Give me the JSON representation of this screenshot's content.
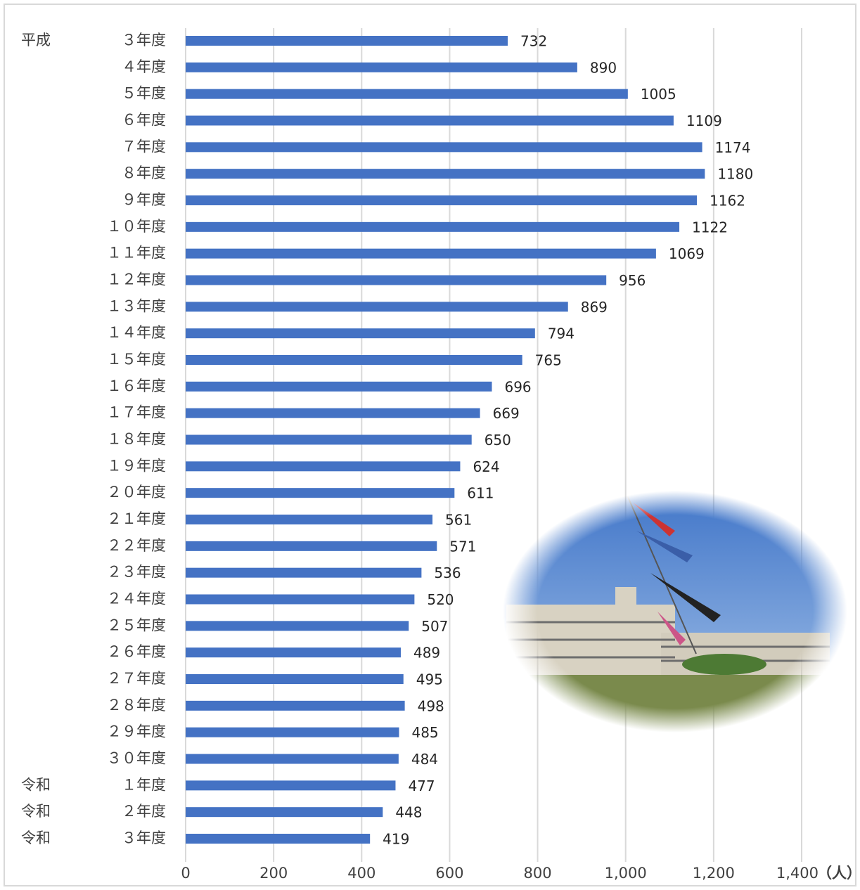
{
  "chart_data": {
    "type": "barh",
    "groups": [
      "平成",
      null,
      null,
      null,
      null,
      null,
      null,
      null,
      null,
      null,
      null,
      null,
      null,
      null,
      null,
      null,
      null,
      null,
      null,
      null,
      null,
      null,
      null,
      null,
      null,
      null,
      null,
      null,
      "令和",
      "令和",
      "令和"
    ],
    "categories": [
      "３年度",
      "４年度",
      "５年度",
      "６年度",
      "７年度",
      "８年度",
      "９年度",
      "１０年度",
      "１１年度",
      "１２年度",
      "１３年度",
      "１４年度",
      "１５年度",
      "１６年度",
      "１７年度",
      "１８年度",
      "１９年度",
      "２０年度",
      "２１年度",
      "２２年度",
      "２３年度",
      "２４年度",
      "２５年度",
      "２６年度",
      "２７年度",
      "２８年度",
      "２９年度",
      "３０年度",
      "１年度",
      "２年度",
      "３年度"
    ],
    "values": [
      732,
      890,
      1005,
      1109,
      1174,
      1180,
      1162,
      1122,
      1069,
      956,
      869,
      794,
      765,
      696,
      669,
      650,
      624,
      611,
      561,
      571,
      536,
      520,
      507,
      489,
      495,
      498,
      485,
      484,
      477,
      448,
      419
    ],
    "color": "#4472c4",
    "xlim": [
      0,
      1400
    ],
    "xticks": [
      0,
      200,
      400,
      600,
      800,
      {
        "value": 1000,
        "label": "1,000"
      },
      {
        "value": 1200,
        "label": "1,200"
      },
      {
        "value": 1400,
        "label": "1,400"
      }
    ],
    "unit_label": "（人）",
    "grid": true
  }
}
